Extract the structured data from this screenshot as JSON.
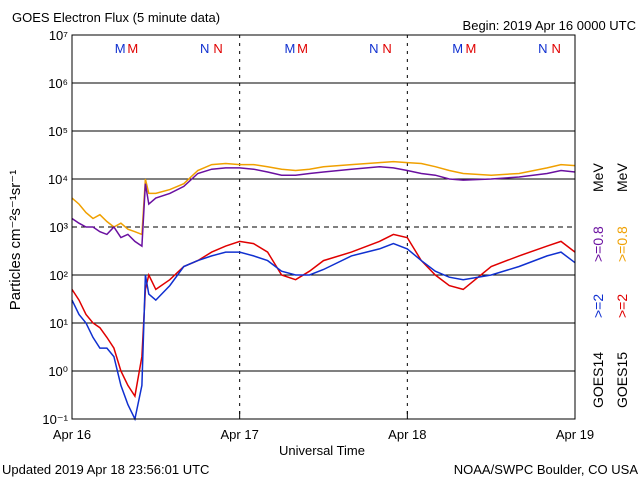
{
  "chart_data": {
    "type": "line",
    "title": "GOES Electron Flux (5 minute data)",
    "subtitle": "Begin: 2019 Apr 16 0000 UTC",
    "y_label": "Particles cm⁻²s⁻¹sr⁻¹",
    "x_label": "Universal Time",
    "footer_left": "Updated 2019 Apr 18 23:56:01 UTC",
    "footer_right": "NOAA/SWPC Boulder, CO USA",
    "unit": "MeV",
    "log_y": true,
    "grid": true,
    "threshold": 1000,
    "xlim": [
      0,
      72
    ],
    "xticks": [
      {
        "value": 0,
        "label": "Apr 16"
      },
      {
        "value": 24,
        "label": "Apr 17"
      },
      {
        "value": 48,
        "label": "Apr 18"
      },
      {
        "value": 72,
        "label": "Apr 19"
      }
    ],
    "ylim": [
      0.1,
      10000000
    ],
    "yticks": [
      {
        "value": 0.1,
        "label": "10⁻¹"
      },
      {
        "value": 1,
        "label": "10⁰"
      },
      {
        "value": 10,
        "label": "10¹"
      },
      {
        "value": 100,
        "label": "10²"
      },
      {
        "value": 1000,
        "label": "10³"
      },
      {
        "value": 10000,
        "label": "10⁴"
      },
      {
        "value": 100000,
        "label": "10⁵"
      },
      {
        "value": 1000000,
        "label": "10⁶"
      },
      {
        "value": 10000000,
        "label": "10⁷"
      }
    ],
    "x": [
      0,
      1,
      2,
      3,
      4,
      5,
      6,
      7,
      8,
      9,
      10,
      10.5,
      11,
      12,
      14,
      16,
      18,
      20,
      22,
      24,
      26,
      28,
      30,
      32,
      34,
      36,
      40,
      44,
      46,
      48,
      50,
      52,
      54,
      56,
      60,
      64,
      68,
      70,
      72
    ],
    "series": [
      {
        "name": ">=0.8",
        "satellite": "GOES15",
        "color": "#f0a000",
        "values": [
          4000,
          3000,
          2000,
          1500,
          1800,
          1300,
          1000,
          1200,
          900,
          800,
          700,
          10000,
          5000,
          5000,
          6000,
          8000,
          15000,
          20000,
          21000,
          20000,
          20000,
          18000,
          16000,
          15000,
          16000,
          18000,
          20000,
          22000,
          23000,
          22000,
          21000,
          18000,
          15000,
          13000,
          12000,
          13000,
          17000,
          20000,
          19000
        ]
      },
      {
        "name": ">=0.8",
        "satellite": "GOES14",
        "color": "#6a10a0",
        "values": [
          1500,
          1200,
          1000,
          1000,
          800,
          700,
          1000,
          600,
          700,
          500,
          400,
          8000,
          3000,
          4000,
          5000,
          7000,
          13000,
          16000,
          17000,
          17000,
          16000,
          14000,
          12000,
          12000,
          13000,
          14000,
          16000,
          18000,
          17000,
          15000,
          13000,
          12000,
          10000,
          9500,
          10000,
          11000,
          13000,
          15000,
          14000
        ]
      },
      {
        "name": ">=2",
        "satellite": "GOES15",
        "color": "#e00000",
        "values": [
          50,
          30,
          15,
          10,
          8,
          5,
          3,
          1,
          0.5,
          0.3,
          2,
          50,
          100,
          50,
          80,
          150,
          200,
          300,
          400,
          500,
          450,
          300,
          100,
          80,
          120,
          200,
          300,
          500,
          700,
          600,
          200,
          100,
          60,
          50,
          150,
          250,
          400,
          500,
          300
        ]
      },
      {
        "name": ">=2",
        "satellite": "GOES14",
        "color": "#1030d0",
        "values": [
          30,
          15,
          10,
          5,
          3,
          3,
          2,
          0.5,
          0.2,
          0.1,
          0.5,
          100,
          40,
          30,
          60,
          150,
          200,
          250,
          300,
          300,
          250,
          200,
          120,
          100,
          100,
          130,
          250,
          350,
          450,
          350,
          200,
          120,
          90,
          80,
          100,
          150,
          250,
          300,
          180
        ]
      }
    ],
    "markers": [
      {
        "label": "M",
        "color": "#1030d0",
        "x": 6.9
      },
      {
        "label": "M",
        "color": "#e00000",
        "x": 8.7
      },
      {
        "label": "N",
        "color": "#1030d0",
        "x": 19
      },
      {
        "label": "N",
        "color": "#e00000",
        "x": 20.9
      },
      {
        "label": "M",
        "color": "#1030d0",
        "x": 31.2
      },
      {
        "label": "M",
        "color": "#e00000",
        "x": 33
      },
      {
        "label": "N",
        "color": "#1030d0",
        "x": 43.2
      },
      {
        "label": "N",
        "color": "#e00000",
        "x": 45.1
      },
      {
        "label": "M",
        "color": "#1030d0",
        "x": 55.2
      },
      {
        "label": "M",
        "color": "#e00000",
        "x": 57.1
      },
      {
        "label": "N",
        "color": "#1030d0",
        "x": 67.4
      },
      {
        "label": "N",
        "color": "#e00000",
        "x": 69.3
      }
    ]
  }
}
